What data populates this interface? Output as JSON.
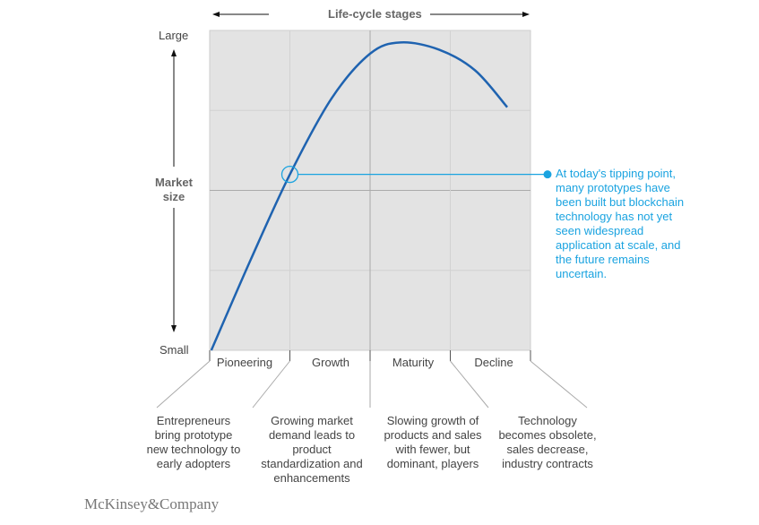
{
  "chart_data": {
    "type": "line",
    "title": "Life-cycle stages",
    "ylabel": "Market size",
    "y_top_label": "Large",
    "y_bottom_label": "Small",
    "stages": [
      "Pioneering",
      "Growth",
      "Maturity",
      "Decline"
    ],
    "stage_descriptions": [
      "Entrepreneurs bring prototype new technology to early adopters",
      "Growing market demand leads to product standardization and enhancements",
      "Slowing growth of products and sales with fewer, but dominant, players",
      "Technology becomes obsolete, sales decrease, industry contracts"
    ],
    "xlim": [
      0,
      4
    ],
    "ylim": [
      0,
      4
    ],
    "series": [
      {
        "name": "Market size",
        "color": "#1f63b0",
        "x": [
          0.02,
          0.51,
          1.0,
          1.52,
          2.0,
          2.38,
          2.86,
          3.31,
          3.71
        ],
        "y": [
          0,
          1.13,
          2.2,
          3.15,
          3.71,
          3.85,
          3.76,
          3.5,
          3.04
        ]
      }
    ],
    "annotation": {
      "x": 1.0,
      "y": 2.2,
      "color": "#1aa3e0",
      "text": "At today's tipping point, many prototypes have been built but blockchain technology has not yet seen widespread application at scale, and the future remains uncertain."
    }
  },
  "footer": {
    "logo": "McKinsey&Company"
  }
}
